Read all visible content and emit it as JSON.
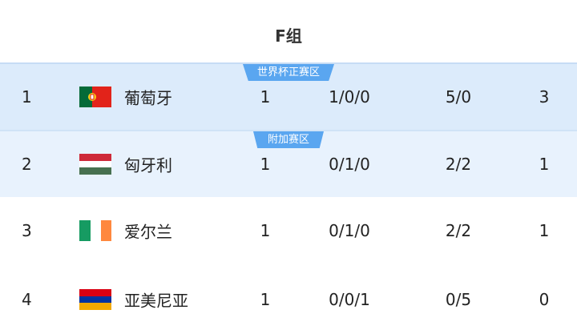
{
  "group_title": "F组",
  "teams": [
    {
      "rank": "1",
      "name": "葡萄牙",
      "flag": "portugal-flag",
      "played": "1",
      "wdl": "1/0/0",
      "goals": "5/0",
      "points": "3",
      "zone": "世界杯正赛区"
    },
    {
      "rank": "2",
      "name": "匈牙利",
      "flag": "hungary-flag",
      "played": "1",
      "wdl": "0/1/0",
      "goals": "2/2",
      "points": "1",
      "zone": "附加赛区"
    },
    {
      "rank": "3",
      "name": "爱尔兰",
      "flag": "ireland-flag",
      "played": "1",
      "wdl": "0/1/0",
      "goals": "2/2",
      "points": "1"
    },
    {
      "rank": "4",
      "name": "亚美尼亚",
      "flag": "armenia-flag",
      "played": "1",
      "wdl": "0/0/1",
      "goals": "0/5",
      "points": "0"
    }
  ],
  "colors": {
    "qualified_row": "#dcebfb",
    "playoff_row": "#e8f2fd",
    "badge": "#5aa6f0"
  }
}
